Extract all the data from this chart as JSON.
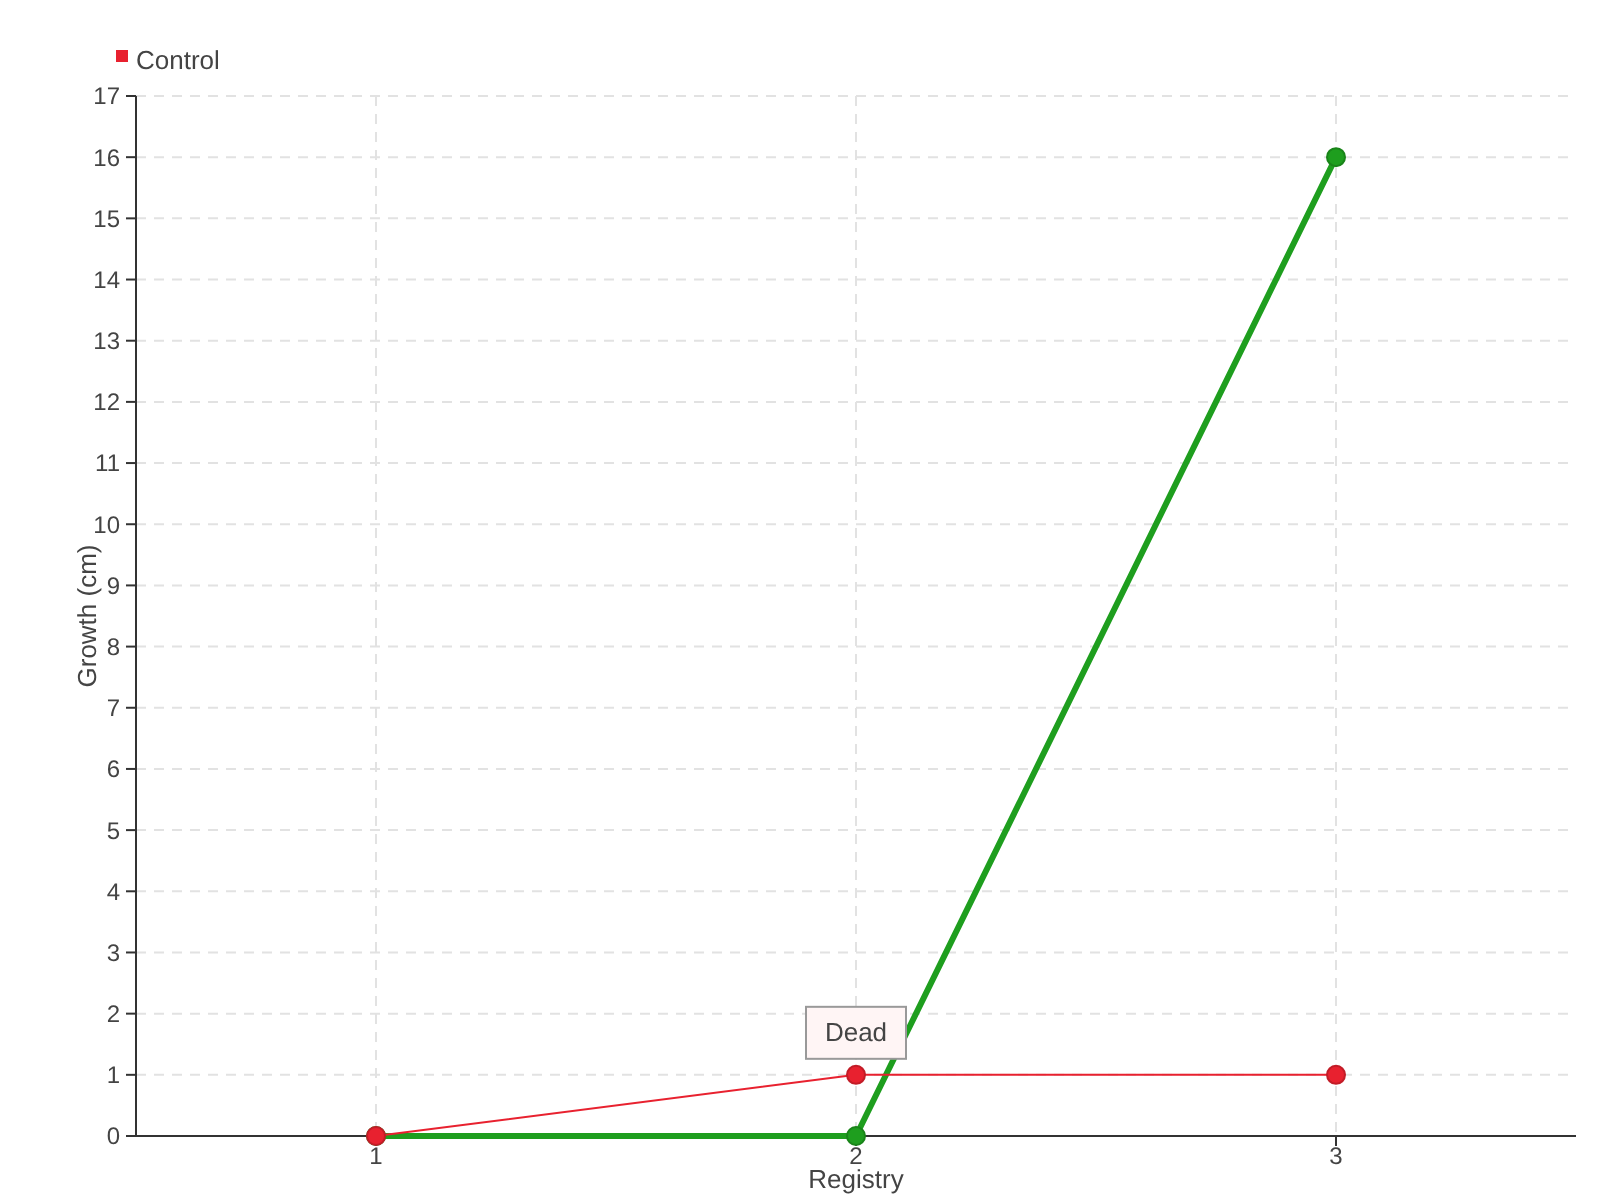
{
  "chart_data": {
    "type": "line",
    "xlabel": "Registry",
    "ylabel": "Growth (cm)",
    "categories": [
      "1",
      "2",
      "3"
    ],
    "series": [
      {
        "color": "#1e9e1e",
        "values": [
          0,
          0,
          16
        ]
      },
      {
        "name": "Control",
        "color": "#e8212f",
        "values": [
          0,
          1,
          1
        ]
      }
    ],
    "ylim": [
      0,
      17
    ],
    "yticks": [
      0,
      1,
      2,
      3,
      4,
      5,
      6,
      7,
      8,
      9,
      10,
      11,
      12,
      13,
      14,
      15,
      16,
      17
    ],
    "grid": true,
    "legend": "top left",
    "marker": "circle",
    "annotations": [
      {
        "text": "Dead",
        "x": "2",
        "y": 1
      }
    ]
  }
}
